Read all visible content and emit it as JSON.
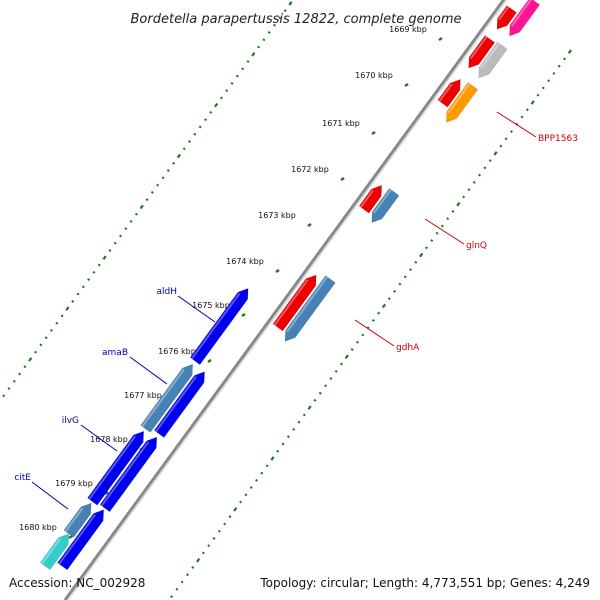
{
  "title": "Bordetella parapertussis 12822, complete genome",
  "footer": {
    "accession": "Accession: NC_002928",
    "summary": "Topology: circular; Length: 4,773,551 bp; Genes: 4,249"
  },
  "ticks": [
    "1669 kbp",
    "1670 kbp",
    "1671 kbp",
    "1672 kbp",
    "1673 kbp",
    "1674 kbp",
    "1675 kbp",
    "1676 kbp",
    "1677 kbp",
    "1678 kbp",
    "1679 kbp",
    "1680 kbp"
  ],
  "genes_labeled": [
    {
      "name": "BPP1563",
      "color": "#cc0000"
    },
    {
      "name": "glnQ",
      "color": "#cc0000"
    },
    {
      "name": "gdhA",
      "color": "#cc0000"
    },
    {
      "name": "aldH",
      "color": "#0000aa"
    },
    {
      "name": "amaB",
      "color": "#0000aa"
    },
    {
      "name": "ilvG",
      "color": "#0000aa"
    },
    {
      "name": "citE",
      "color": "#0000aa"
    }
  ],
  "colors": {
    "backbone": "#888888",
    "gc_dots": "#1a7a1a",
    "red_gene": "#ee0000",
    "blue_gene": "#0000ee",
    "steelblue_gene": "#4682b4",
    "cyan_gene": "#33cccc",
    "orange_gene": "#ff9900",
    "gray_gene": "#bbbbbb",
    "pink_gene": "#ff1493"
  }
}
